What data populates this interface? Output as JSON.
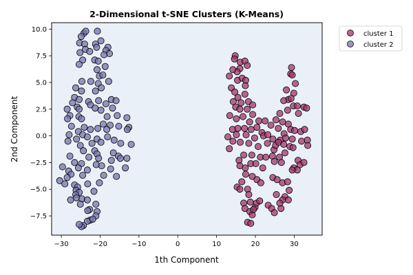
{
  "chart_data": {
    "type": "scatter",
    "title": "2-Dimensional t-SNE Clusters (K-Means)",
    "xlabel": "1th Component",
    "ylabel": "2nd Component",
    "xlim": [
      -32.5,
      37.2
    ],
    "ylim": [
      -9.3,
      10.6
    ],
    "xticks": [
      -30,
      -20,
      -10,
      0,
      10,
      20,
      30
    ],
    "yticks": [
      -7.5,
      -5.0,
      -2.5,
      0.0,
      2.5,
      5.0,
      7.5,
      10.0
    ],
    "ytick_labels": [
      "−7.5",
      "−5.0",
      "−2.5",
      "0.0",
      "2.5",
      "5.0",
      "7.5",
      "10.0"
    ],
    "xtick_labels": [
      "−30",
      "−20",
      "−10",
      "0",
      "10",
      "20",
      "30"
    ],
    "grid": false,
    "plot_background": "#eaf0f7",
    "legend_position": "outside top-right",
    "series": [
      {
        "name": "cluster 1",
        "color": "#a2366d",
        "points": [
          [
            14.8,
            7.5
          ],
          [
            14.6,
            7.2
          ],
          [
            16.1,
            6.9
          ],
          [
            17.3,
            7.0
          ],
          [
            16.0,
            6.3
          ],
          [
            15.3,
            6.0
          ],
          [
            17.9,
            6.6
          ],
          [
            14.2,
            6.2
          ],
          [
            13.3,
            5.6
          ],
          [
            15.4,
            5.2
          ],
          [
            16.6,
            5.4
          ],
          [
            17.5,
            5.2
          ],
          [
            17.4,
            4.7
          ],
          [
            13.8,
            4.5
          ],
          [
            14.7,
            4.1
          ],
          [
            17.3,
            3.9
          ],
          [
            15.5,
            3.6
          ],
          [
            14.3,
            3.2
          ],
          [
            16.3,
            3.1
          ],
          [
            18.2,
            3.2
          ],
          [
            19.3,
            2.9
          ],
          [
            14.9,
            2.7
          ],
          [
            16.0,
            2.5
          ],
          [
            17.9,
            2.5
          ],
          [
            19.3,
            2.0
          ],
          [
            13.4,
            1.9
          ],
          [
            15.1,
            1.6
          ],
          [
            16.8,
            1.8
          ],
          [
            18.5,
            1.3
          ],
          [
            20.9,
            1.4
          ],
          [
            22.5,
            1.4
          ],
          [
            14.1,
            0.6
          ],
          [
            15.5,
            0.7
          ],
          [
            17.2,
            0.7
          ],
          [
            18.9,
            0.6
          ],
          [
            20.4,
            0.8
          ],
          [
            21.7,
            0.3
          ],
          [
            12.9,
            -0.1
          ],
          [
            15.1,
            0.1
          ],
          [
            17.6,
            0.1
          ],
          [
            19.8,
            -0.2
          ],
          [
            22.1,
            0.0
          ],
          [
            14.2,
            -0.5
          ],
          [
            13.3,
            -1.2
          ],
          [
            16.1,
            -0.6
          ],
          [
            18.3,
            -0.7
          ],
          [
            20.7,
            -1.0
          ],
          [
            17.0,
            -1.8
          ],
          [
            19.1,
            -1.8
          ],
          [
            21.3,
            -2.0
          ],
          [
            15.8,
            -2.3
          ],
          [
            16.0,
            -2.8
          ],
          [
            17.4,
            -3.0
          ],
          [
            18.8,
            -2.6
          ],
          [
            20.1,
            -2.6
          ],
          [
            21.9,
            -3.0
          ],
          [
            17.5,
            -3.6
          ],
          [
            19.2,
            -3.8
          ],
          [
            16.5,
            -4.3
          ],
          [
            15.3,
            -4.8
          ],
          [
            16.0,
            -5.0
          ],
          [
            18.0,
            -5.0
          ],
          [
            18.3,
            -5.5
          ],
          [
            20.4,
            -4.1
          ],
          [
            21.4,
            -4.4
          ],
          [
            17.0,
            -6.3
          ],
          [
            18.7,
            -6.2
          ],
          [
            19.9,
            -6.7
          ],
          [
            17.3,
            -6.8
          ],
          [
            18.6,
            -7.1
          ],
          [
            19.2,
            -7.4
          ],
          [
            20.3,
            -6.3
          ],
          [
            21.1,
            -6.1
          ],
          [
            18.0,
            -8.1
          ],
          [
            18.8,
            -8.2
          ],
          [
            19.5,
            -6.9
          ],
          [
            23.3,
            -6.5
          ],
          [
            24.2,
            -6.8
          ],
          [
            24.9,
            -7.2
          ],
          [
            26.6,
            -6.8
          ],
          [
            29.3,
            6.4
          ],
          [
            29.1,
            5.8
          ],
          [
            30.3,
            4.9
          ],
          [
            29.5,
            5.7
          ],
          [
            28.0,
            4.3
          ],
          [
            29.9,
            4.0
          ],
          [
            28.5,
            3.4
          ],
          [
            27.3,
            3.3
          ],
          [
            29.2,
            3.5
          ],
          [
            29.8,
            2.8
          ],
          [
            30.8,
            2.8
          ],
          [
            28.3,
            2.4
          ],
          [
            31.1,
            2.1
          ],
          [
            32.5,
            2.7
          ],
          [
            33.2,
            2.6
          ],
          [
            26.3,
            2.1
          ],
          [
            25.3,
            1.5
          ],
          [
            27.0,
            1.3
          ],
          [
            28.5,
            1.1
          ],
          [
            24.0,
            1.0
          ],
          [
            25.9,
            0.7
          ],
          [
            27.4,
            0.2
          ],
          [
            29.1,
            0.6
          ],
          [
            30.1,
            0.5
          ],
          [
            31.7,
            0.4
          ],
          [
            32.7,
            0.6
          ],
          [
            23.2,
            0.1
          ],
          [
            24.5,
            -0.3
          ],
          [
            26.4,
            -0.4
          ],
          [
            27.8,
            -0.2
          ],
          [
            29.5,
            -0.3
          ],
          [
            31.9,
            -0.5
          ],
          [
            33.4,
            -0.4
          ],
          [
            23.1,
            -0.7
          ],
          [
            24.8,
            -1.3
          ],
          [
            25.2,
            -0.9
          ],
          [
            26.0,
            -0.6
          ],
          [
            27.3,
            -0.8
          ],
          [
            28.9,
            -1.0
          ],
          [
            29.7,
            -1.1
          ],
          [
            33.5,
            -0.9
          ],
          [
            22.7,
            -2.0
          ],
          [
            24.4,
            -1.9
          ],
          [
            26.2,
            -2.0
          ],
          [
            27.6,
            -1.6
          ],
          [
            31.0,
            -2.3
          ],
          [
            31.5,
            -2.7
          ],
          [
            32.5,
            -2.5
          ],
          [
            24.9,
            -2.4
          ],
          [
            26.7,
            -2.5
          ],
          [
            29.9,
            -3.0
          ],
          [
            30.8,
            -3.2
          ],
          [
            29.5,
            -3.2
          ],
          [
            24.5,
            -3.9
          ],
          [
            25.6,
            -4.1
          ],
          [
            27.0,
            -4.4
          ],
          [
            28.3,
            -4.3
          ],
          [
            28.7,
            -5.1
          ],
          [
            27.6,
            -5.7
          ],
          [
            27.0,
            -6.0
          ],
          [
            25.4,
            -5.5
          ],
          [
            26.3,
            -6.3
          ],
          [
            28.5,
            -6.0
          ]
        ]
      },
      {
        "name": "cluster 2",
        "color": "#7676ad",
        "points": [
          [
            -24.2,
            9.6
          ],
          [
            -23.7,
            9.8
          ],
          [
            -24.9,
            9.3
          ],
          [
            -20.7,
            9.8
          ],
          [
            -25.3,
            8.7
          ],
          [
            -24.0,
            8.6
          ],
          [
            -23.8,
            8.1
          ],
          [
            -21.2,
            8.6
          ],
          [
            -20.9,
            8.3
          ],
          [
            -19.8,
            8.9
          ],
          [
            -18.0,
            8.3
          ],
          [
            -18.5,
            8.0
          ],
          [
            -17.6,
            7.7
          ],
          [
            -25.2,
            7.8
          ],
          [
            -22.7,
            7.9
          ],
          [
            -19.0,
            7.6
          ],
          [
            -24.5,
            7.1
          ],
          [
            -21.4,
            7.1
          ],
          [
            -20.5,
            7.0
          ],
          [
            -25.4,
            6.7
          ],
          [
            -18.7,
            6.5
          ],
          [
            -20.8,
            6.2
          ],
          [
            -20.2,
            5.6
          ],
          [
            -19.3,
            5.7
          ],
          [
            -24.7,
            5.1
          ],
          [
            -22.4,
            5.1
          ],
          [
            -20.5,
            4.9
          ],
          [
            -17.8,
            5.1
          ],
          [
            -26.3,
            4.5
          ],
          [
            -24.8,
            4.2
          ],
          [
            -21.2,
            4.2
          ],
          [
            -19.7,
            4.5
          ],
          [
            -26.6,
            3.6
          ],
          [
            -25.4,
            3.4
          ],
          [
            -27.1,
            3.1
          ],
          [
            -23.0,
            3.2
          ],
          [
            -20.4,
            3.3
          ],
          [
            -18.5,
            3.0
          ],
          [
            -17.1,
            3.4
          ],
          [
            -15.9,
            3.3
          ],
          [
            -16.8,
            2.6
          ],
          [
            -28.5,
            2.5
          ],
          [
            -25.9,
            2.7
          ],
          [
            -25.4,
            2.5
          ],
          [
            -22.5,
            2.9
          ],
          [
            -21.3,
            2.6
          ],
          [
            -19.8,
            2.4
          ],
          [
            -27.8,
            1.9
          ],
          [
            -28.4,
            1.6
          ],
          [
            -25.5,
            1.8
          ],
          [
            -24.8,
            1.6
          ],
          [
            -18.2,
            1.8
          ],
          [
            -15.6,
            1.9
          ],
          [
            -13.1,
            1.7
          ],
          [
            -27.4,
            0.9
          ],
          [
            -24.1,
            0.8
          ],
          [
            -22.5,
            0.6
          ],
          [
            -19.2,
            1.1
          ],
          [
            -17.4,
            1.0
          ],
          [
            -15.2,
            0.9
          ],
          [
            -12.6,
            0.8
          ],
          [
            -28.0,
            0.1
          ],
          [
            -25.6,
            0.4
          ],
          [
            -24.5,
            0.1
          ],
          [
            -20.6,
            0.7
          ],
          [
            -18.3,
            0.6
          ],
          [
            -13.0,
            0.6
          ],
          [
            -26.1,
            -0.3
          ],
          [
            -28.3,
            -0.5
          ],
          [
            -23.3,
            -0.1
          ],
          [
            -20.8,
            -0.3
          ],
          [
            -18.1,
            -0.1
          ],
          [
            -16.4,
            -0.4
          ],
          [
            -25.1,
            -0.9
          ],
          [
            -22.1,
            -0.7
          ],
          [
            -19.8,
            -0.6
          ],
          [
            -14.7,
            -0.7
          ],
          [
            -12.0,
            -0.8
          ],
          [
            -24.3,
            -1.4
          ],
          [
            -21.4,
            -1.4
          ],
          [
            -20.8,
            -1.7
          ],
          [
            -16.6,
            -1.6
          ],
          [
            -15.3,
            -1.9
          ],
          [
            -27.8,
            -1.9
          ],
          [
            -22.9,
            -2.0
          ],
          [
            -20.4,
            -2.1
          ],
          [
            -17.1,
            -2.3
          ],
          [
            -14.8,
            -2.1
          ],
          [
            -13.1,
            -2.1
          ],
          [
            -26.6,
            -2.5
          ],
          [
            -24.8,
            -2.6
          ],
          [
            -21.0,
            -2.7
          ],
          [
            -19.6,
            -2.8
          ],
          [
            -17.3,
            -3.1
          ],
          [
            -13.5,
            -3.0
          ],
          [
            -29.7,
            -2.9
          ],
          [
            -28.1,
            -3.3
          ],
          [
            -25.6,
            -3.0
          ],
          [
            -23.3,
            -3.2
          ],
          [
            -19.1,
            -3.7
          ],
          [
            -15.8,
            -3.8
          ],
          [
            -27.5,
            -3.6
          ],
          [
            -28.5,
            -3.9
          ],
          [
            -24.5,
            -3.7
          ],
          [
            -30.4,
            -4.2
          ],
          [
            -29.1,
            -4.5
          ],
          [
            -26.6,
            -4.6
          ],
          [
            -25.8,
            -4.8
          ],
          [
            -23.2,
            -4.5
          ],
          [
            -20.2,
            -4.4
          ],
          [
            -26.2,
            -5.1
          ],
          [
            -25.4,
            -5.3
          ],
          [
            -21.6,
            -5.2
          ],
          [
            -26.3,
            -5.5
          ],
          [
            -26.1,
            -5.8
          ],
          [
            -24.7,
            -5.9
          ],
          [
            -23.3,
            -6.0
          ],
          [
            -21.1,
            -6.4
          ],
          [
            -27.6,
            -6.0
          ],
          [
            -25.1,
            -6.4
          ],
          [
            -22.7,
            -6.9
          ],
          [
            -23.2,
            -7.0
          ],
          [
            -20.8,
            -7.1
          ],
          [
            -21.1,
            -7.5
          ],
          [
            -22.6,
            -7.9
          ],
          [
            -23.3,
            -8.0
          ],
          [
            -24.3,
            -8.4
          ],
          [
            -24.8,
            -8.5
          ],
          [
            -25.4,
            -8.3
          ],
          [
            -21.9,
            -7.8
          ]
        ]
      }
    ]
  }
}
